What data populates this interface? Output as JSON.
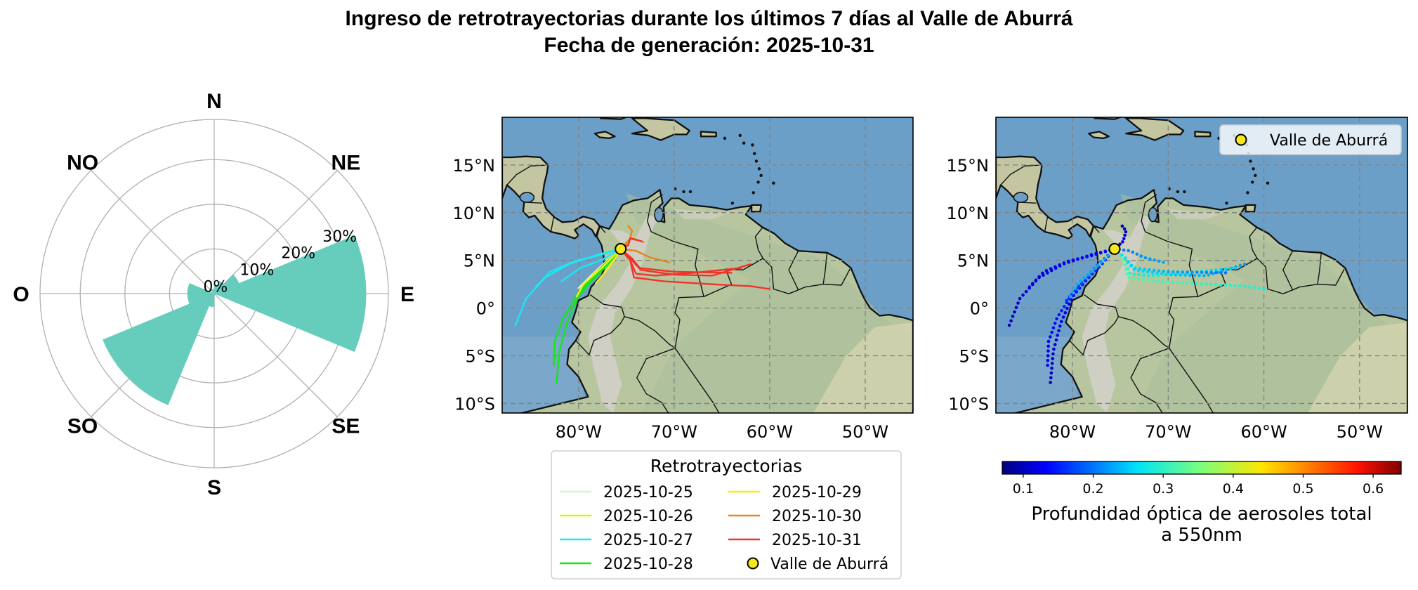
{
  "title_line1": "Ingreso de retrotrayectorias durante los últimos 7 días al Valle de Aburrá",
  "title_line2": "Fecha de generación: 2025-10-31",
  "chart_data": [
    {
      "type": "rose",
      "directions": [
        "N",
        "NE",
        "E",
        "SE",
        "S",
        "SO",
        "O",
        "NO"
      ],
      "direction_labels": [
        "N",
        "NE",
        "E",
        "SE",
        "S",
        "SO",
        "O",
        "NO"
      ],
      "bins": [
        {
          "from_deg": 0,
          "to_deg": 22.5,
          "value": 2
        },
        {
          "from_deg": 22.5,
          "to_deg": 45,
          "value": 3
        },
        {
          "from_deg": 45,
          "to_deg": 67.5,
          "value": 6
        },
        {
          "from_deg": 67.5,
          "to_deg": 90,
          "value": 34
        },
        {
          "from_deg": 90,
          "to_deg": 112.5,
          "value": 34
        },
        {
          "from_deg": 180,
          "to_deg": 202.5,
          "value": 3
        },
        {
          "from_deg": 202.5,
          "to_deg": 225,
          "value": 27
        },
        {
          "from_deg": 225,
          "to_deg": 247.5,
          "value": 27
        },
        {
          "from_deg": 247.5,
          "to_deg": 270,
          "value": 6
        },
        {
          "from_deg": 270,
          "to_deg": 292.5,
          "value": 6
        },
        {
          "from_deg": 315,
          "to_deg": 337.5,
          "value": 1
        },
        {
          "from_deg": 337.5,
          "to_deg": 360,
          "value": 1
        }
      ],
      "radial_ticks": [
        "0%",
        "10%",
        "20%",
        "30%"
      ],
      "radial_values": [
        0,
        10,
        20,
        30
      ],
      "rmax": 39,
      "color": "#66cdbd"
    },
    {
      "type": "line",
      "xlim": [
        -88,
        -45
      ],
      "ylim": [
        -11,
        20
      ],
      "xticks": [
        -80,
        -70,
        -60,
        -50
      ],
      "xtick_labels": [
        "80°W",
        "70°W",
        "60°W",
        "50°W"
      ],
      "yticks": [
        15,
        10,
        5,
        0,
        -5,
        -10
      ],
      "ytick_labels": [
        "15°N",
        "10°N",
        "5°N",
        "0°",
        "5°S",
        "10°S"
      ],
      "legend_title": "Retrotrayectorias",
      "series": [
        {
          "name": "2025-10-25",
          "color": "#d4f7c8",
          "tracks": [
            [
              [
                -75.6,
                6.2
              ],
              [
                -77,
                5
              ],
              [
                -78.5,
                3.6
              ],
              [
                -80,
                2.1
              ]
            ]
          ]
        },
        {
          "name": "2025-10-26",
          "color": "#d8f213",
          "tracks": [
            [
              [
                -75.6,
                6.2
              ],
              [
                -76.5,
                5
              ],
              [
                -77.8,
                3.8
              ],
              [
                -79,
                2.8
              ],
              [
                -80,
                1.5
              ]
            ],
            [
              [
                -75.6,
                6.2
              ],
              [
                -77,
                4.8
              ],
              [
                -78.5,
                3.5
              ]
            ]
          ]
        },
        {
          "name": "2025-10-27",
          "color": "#1ee6f2",
          "tracks": [
            [
              [
                -75.6,
                6.2
              ],
              [
                -78,
                5.6
              ],
              [
                -81,
                4.6
              ],
              [
                -83.5,
                3.2
              ],
              [
                -85.5,
                1
              ],
              [
                -86.6,
                -1.8
              ]
            ],
            [
              [
                -75.6,
                6.2
              ],
              [
                -78,
                5.5
              ],
              [
                -80.5,
                4.9
              ],
              [
                -83,
                3.8
              ],
              [
                -84.5,
                2.2
              ]
            ],
            [
              [
                -75.6,
                6.2
              ],
              [
                -77.5,
                5.1
              ],
              [
                -79.8,
                4.2
              ],
              [
                -81.8,
                2.8
              ]
            ]
          ]
        },
        {
          "name": "2025-10-28",
          "color": "#16e51b",
          "tracks": [
            [
              [
                -75.6,
                6.2
              ],
              [
                -77,
                4.5
              ],
              [
                -78.5,
                3
              ],
              [
                -80,
                1.2
              ],
              [
                -81.2,
                -1.5
              ],
              [
                -82,
                -4.5
              ],
              [
                -82.3,
                -7.8
              ]
            ],
            [
              [
                -75.6,
                6.2
              ],
              [
                -76.8,
                4.8
              ],
              [
                -78.3,
                3.3
              ],
              [
                -80,
                1.5
              ],
              [
                -81.6,
                -1
              ],
              [
                -82.5,
                -3.5
              ],
              [
                -82.6,
                -6
              ]
            ],
            [
              [
                -75.6,
                6.2
              ],
              [
                -77.3,
                4.6
              ],
              [
                -79,
                2.8
              ],
              [
                -80.6,
                0.8
              ]
            ]
          ]
        },
        {
          "name": "2025-10-29",
          "color": "#f6ec18",
          "tracks": [
            [
              [
                -75.6,
                6.2
              ],
              [
                -76.6,
                5.2
              ],
              [
                -77.6,
                4.2
              ],
              [
                -78.5,
                3.4
              ],
              [
                -79.5,
                2.5
              ],
              [
                -80.2,
                1.2
              ]
            ],
            [
              [
                -75.6,
                6.2
              ],
              [
                -76.3,
                5
              ],
              [
                -77.2,
                3.8
              ],
              [
                -78.2,
                2.6
              ]
            ]
          ]
        },
        {
          "name": "2025-10-30",
          "color": "#e3871a",
          "tracks": [
            [
              [
                -75.6,
                6.2
              ],
              [
                -74.7,
                7
              ],
              [
                -74.4,
                8.1
              ],
              [
                -74.8,
                8.6
              ]
            ],
            [
              [
                -75.6,
                6.2
              ],
              [
                -74,
                6
              ],
              [
                -72.5,
                5.3
              ],
              [
                -70.5,
                4.8
              ]
            ],
            [
              [
                -75.6,
                6.2
              ],
              [
                -74.5,
                7.4
              ],
              [
                -73.2,
                6.9
              ]
            ]
          ]
        },
        {
          "name": "2025-10-31",
          "color": "#f0342a",
          "tracks": [
            [
              [
                -75.6,
                6.2
              ],
              [
                -74.6,
                5.2
              ],
              [
                -73.5,
                4
              ],
              [
                -70,
                3.5
              ],
              [
                -66,
                3.4
              ],
              [
                -62,
                4.6
              ]
            ],
            [
              [
                -75.6,
                6.2
              ],
              [
                -74.6,
                5
              ],
              [
                -74,
                3.6
              ],
              [
                -72,
                3.4
              ],
              [
                -68,
                3.7
              ],
              [
                -63,
                4.2
              ]
            ],
            [
              [
                -75.6,
                6.2
              ],
              [
                -74.6,
                5
              ],
              [
                -74.2,
                3.2
              ],
              [
                -71,
                2.8
              ],
              [
                -66,
                2.5
              ],
              [
                -62,
                2.3
              ],
              [
                -60,
                2
              ]
            ],
            [
              [
                -75.6,
                6.2
              ],
              [
                -74.4,
                5.2
              ],
              [
                -73.6,
                4.2
              ],
              [
                -70,
                3.8
              ],
              [
                -64,
                3.7
              ]
            ],
            [
              [
                -75.6,
                6.2
              ],
              [
                -74.8,
                6.6
              ],
              [
                -74.6,
                7.3
              ],
              [
                -73.4,
                7
              ]
            ]
          ]
        }
      ],
      "marker": {
        "name": "Valle de Aburrá",
        "lon": -75.6,
        "lat": 6.2,
        "color": "#f5e91e"
      }
    },
    {
      "type": "scatter",
      "xlim": [
        -88,
        -45
      ],
      "ylim": [
        -11,
        20
      ],
      "xticks": [
        -80,
        -70,
        -60,
        -50
      ],
      "xtick_labels": [
        "80°W",
        "70°W",
        "60°W",
        "50°W"
      ],
      "yticks": [
        15,
        10,
        5,
        0,
        -5,
        -10
      ],
      "ytick_labels": [
        "15°N",
        "10°N",
        "5°N",
        "0°",
        "5°S",
        "10°S"
      ],
      "legend": "Valle de Aburrá",
      "marker": {
        "lon": -75.6,
        "lat": 6.2,
        "color": "#f5e91e"
      },
      "colorbar": {
        "label_line1": "Profundidad óptica de aerosoles total",
        "label_line2": "a 550nm",
        "range": [
          0.07,
          0.64
        ],
        "ticks": [
          0.1,
          0.2,
          0.3,
          0.4,
          0.5,
          0.6
        ],
        "tick_labels": [
          "0.1",
          "0.2",
          "0.3",
          "0.4",
          "0.5",
          "0.6"
        ]
      }
    }
  ]
}
